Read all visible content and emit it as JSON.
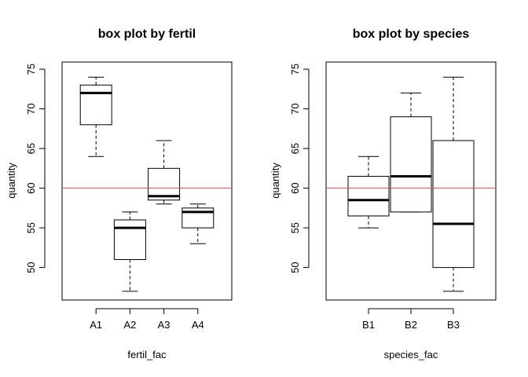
{
  "chart_data": [
    {
      "type": "box",
      "title": "box plot by fertil",
      "xlabel": "fertil_fac",
      "ylabel": "quantity",
      "ylim": [
        45.9,
        75.9
      ],
      "yticks": [
        "50",
        "55",
        "60",
        "65",
        "70",
        "75"
      ],
      "reference_line": {
        "y": 60,
        "color": "#e8474d"
      },
      "categories": [
        "A1",
        "A2",
        "A3",
        "A4"
      ],
      "boxes": [
        {
          "whisker_low": 64,
          "q1": 68,
          "median": 72,
          "q3": 73,
          "whisker_high": 74
        },
        {
          "whisker_low": 47,
          "q1": 51,
          "median": 55,
          "q3": 56,
          "whisker_high": 57
        },
        {
          "whisker_low": 58,
          "q1": 58.5,
          "median": 59,
          "q3": 62.5,
          "whisker_high": 66
        },
        {
          "whisker_low": 53,
          "q1": 55,
          "median": 57,
          "q3": 57.5,
          "whisker_high": 58
        }
      ]
    },
    {
      "type": "box",
      "title": "box plot by species",
      "xlabel": "species_fac",
      "ylabel": "quantity",
      "ylim": [
        45.9,
        75.9
      ],
      "yticks": [
        "50",
        "55",
        "60",
        "65",
        "70",
        "75"
      ],
      "reference_line": {
        "y": 60,
        "color": "#e8474d"
      },
      "categories": [
        "B1",
        "B2",
        "B3"
      ],
      "boxes": [
        {
          "whisker_low": 55,
          "q1": 56.5,
          "median": 58.5,
          "q3": 61.5,
          "whisker_high": 64
        },
        {
          "whisker_low": 57,
          "q1": 57,
          "median": 61.5,
          "q3": 69,
          "whisker_high": 72
        },
        {
          "whisker_low": 47,
          "q1": 50,
          "median": 55.5,
          "q3": 66,
          "whisker_high": 74
        }
      ]
    }
  ]
}
